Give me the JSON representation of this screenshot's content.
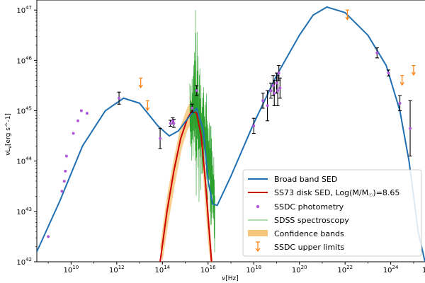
{
  "chart_data": {
    "type": "line",
    "xlabel_main": "ν",
    "xlabel_unit": "[Hz]",
    "ylabel_main": "νL",
    "ylabel_sub": "ν",
    "ylabel_unit": "[erg s^-1]",
    "x_log_range": [
      8.5,
      25.5
    ],
    "y_log_range": [
      42,
      47.2
    ],
    "x_tick_exponents": [
      10,
      12,
      14,
      16,
      18,
      20,
      22,
      24
    ],
    "x_tick_partial_label": "1",
    "y_tick_exponents": [
      42,
      43,
      44,
      45,
      46,
      47
    ],
    "tick_base": "10",
    "grid": false,
    "legend_position": "lower-right",
    "colors": {
      "sed": "#1f6fb2",
      "disk": "#cc0000",
      "band": "#f6c77a",
      "spectroscopy": "#2ca02c",
      "photometry": "#b05ad9",
      "upper_limits": "#ff7f0e",
      "errorbar": "#000000"
    },
    "legend": {
      "sed": "Broad band SED",
      "disk_prefix": "SS73 disk SED, Log(M/M",
      "disk_sub": "☉",
      "disk_suffix": ")=8.65",
      "photometry": "SSDC photometry",
      "spectroscopy": "SDSS spectroscopy",
      "band": "Confidence bands",
      "upper_limits": "SSDC upper limits"
    },
    "series": [
      {
        "name": "Broad band SED",
        "points": [
          [
            8.5,
            42.2
          ],
          [
            9.5,
            43.2
          ],
          [
            10.5,
            44.3
          ],
          [
            11.5,
            45.0
          ],
          [
            12.3,
            45.25
          ],
          [
            13.0,
            45.15
          ],
          [
            13.8,
            44.7
          ],
          [
            14.3,
            44.5
          ],
          [
            14.7,
            44.6
          ],
          [
            15.2,
            44.9
          ],
          [
            15.5,
            45.05
          ],
          [
            15.8,
            44.6
          ],
          [
            16.0,
            43.6
          ],
          [
            16.2,
            43.15
          ],
          [
            16.4,
            43.12
          ],
          [
            17.0,
            43.7
          ],
          [
            18.0,
            44.75
          ],
          [
            19.0,
            45.7
          ],
          [
            20.0,
            46.5
          ],
          [
            20.6,
            46.9
          ],
          [
            21.2,
            47.06
          ],
          [
            22.0,
            46.95
          ],
          [
            23.0,
            46.5
          ],
          [
            23.8,
            45.9
          ],
          [
            24.4,
            45.0
          ],
          [
            24.8,
            44.0
          ],
          [
            25.2,
            42.6
          ],
          [
            25.5,
            42.0
          ]
        ]
      },
      {
        "name": "SS73 disk SED, Log(M/M☉)=8.65",
        "points": [
          [
            13.9,
            42.0
          ],
          [
            14.2,
            43.0
          ],
          [
            14.5,
            43.8
          ],
          [
            14.8,
            44.45
          ],
          [
            15.1,
            44.85
          ],
          [
            15.3,
            45.0
          ],
          [
            15.5,
            44.95
          ],
          [
            15.7,
            44.5
          ],
          [
            15.9,
            43.5
          ],
          [
            16.05,
            42.6
          ],
          [
            16.15,
            42.0
          ]
        ]
      }
    ],
    "confidence_band": {
      "upper": [
        [
          13.9,
          42.3
        ],
        [
          14.2,
          43.3
        ],
        [
          14.5,
          44.05
        ],
        [
          14.8,
          44.7
        ],
        [
          15.1,
          45.08
        ],
        [
          15.3,
          45.22
        ],
        [
          15.5,
          45.17
        ],
        [
          15.7,
          44.75
        ],
        [
          15.9,
          43.8
        ],
        [
          16.05,
          42.9
        ],
        [
          16.2,
          42.0
        ]
      ],
      "lower": [
        [
          14.0,
          42.0
        ],
        [
          14.25,
          42.75
        ],
        [
          14.55,
          43.55
        ],
        [
          14.85,
          44.25
        ],
        [
          15.1,
          44.62
        ],
        [
          15.3,
          44.78
        ],
        [
          15.5,
          44.72
        ],
        [
          15.7,
          44.25
        ],
        [
          15.85,
          43.3
        ],
        [
          16.0,
          42.4
        ],
        [
          16.1,
          42.0
        ]
      ]
    },
    "photometry": [
      {
        "x": 9.0,
        "y": 42.5
      },
      {
        "x": 9.6,
        "y": 43.4
      },
      {
        "x": 9.7,
        "y": 43.6
      },
      {
        "x": 9.75,
        "y": 43.8
      },
      {
        "x": 9.8,
        "y": 44.1
      },
      {
        "x": 10.1,
        "y": 44.55
      },
      {
        "x": 10.3,
        "y": 44.8
      },
      {
        "x": 10.45,
        "y": 45.0
      },
      {
        "x": 10.7,
        "y": 44.95
      },
      {
        "x": 12.1,
        "y": 45.25,
        "err": 0.12
      },
      {
        "x": 13.9,
        "y": 44.45,
        "err": 0.2
      },
      {
        "x": 14.35,
        "y": 44.75,
        "err": 0.06
      },
      {
        "x": 14.45,
        "y": 44.8,
        "err": 0.06
      },
      {
        "x": 14.5,
        "y": 44.75,
        "err": 0.08
      },
      {
        "x": 15.3,
        "y": 45.05,
        "err": 0.08
      },
      {
        "x": 15.5,
        "y": 45.4,
        "err": 0.1
      },
      {
        "x": 18.0,
        "y": 44.7,
        "err": 0.15
      },
      {
        "x": 18.4,
        "y": 45.2,
        "err": 0.15
      },
      {
        "x": 18.6,
        "y": 45.1,
        "err": 0.3
      },
      {
        "x": 18.75,
        "y": 45.4,
        "err": 0.15
      },
      {
        "x": 18.85,
        "y": 45.5,
        "err": 0.2
      },
      {
        "x": 18.9,
        "y": 45.35,
        "err": 0.25
      },
      {
        "x": 19.0,
        "y": 45.55,
        "err": 0.2
      },
      {
        "x": 19.05,
        "y": 45.4,
        "err": 0.3
      },
      {
        "x": 19.1,
        "y": 45.75,
        "err": 0.15
      },
      {
        "x": 19.15,
        "y": 45.45,
        "err": 0.2
      },
      {
        "x": 23.4,
        "y": 46.15,
        "err": 0.1
      },
      {
        "x": 23.9,
        "y": 45.75,
        "err": 0.06
      },
      {
        "x": 24.4,
        "y": 45.15,
        "err": 0.15
      },
      {
        "x": 24.85,
        "y": 44.65,
        "err": 0.55
      }
    ],
    "upper_limits": [
      {
        "x": 13.05,
        "y": 45.65
      },
      {
        "x": 13.35,
        "y": 45.2
      },
      {
        "x": 22.1,
        "y": 47.0
      },
      {
        "x": 24.5,
        "y": 45.7
      },
      {
        "x": 25.0,
        "y": 45.9
      },
      {
        "x": 25.6,
        "y": 46.05
      }
    ],
    "spectroscopy_range": [
      15.2,
      16.3
    ]
  }
}
